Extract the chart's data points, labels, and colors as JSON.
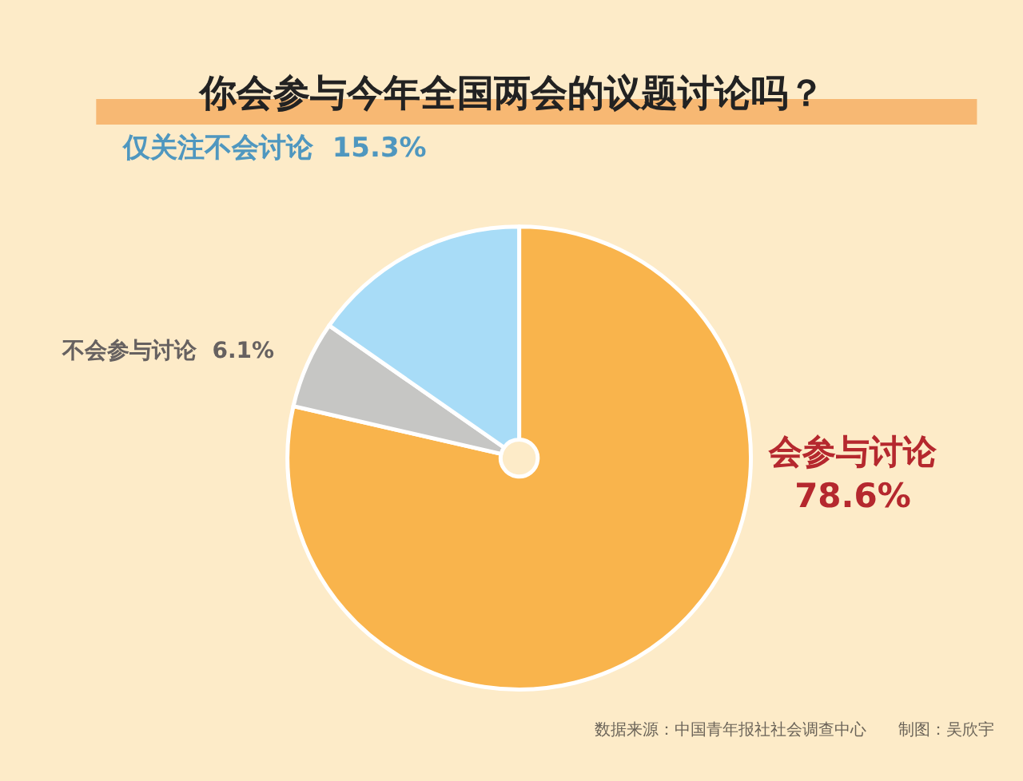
{
  "chart_data": {
    "type": "pie",
    "title": "你会参与今年全国两会的议题讨论吗？",
    "categories": [
      "会参与讨论",
      "不会参与讨论",
      "仅关注不会讨论"
    ],
    "values": [
      78.6,
      6.1,
      15.3
    ],
    "value_labels": [
      "78.6%",
      "6.1%",
      "15.3%"
    ],
    "colors": [
      "#f9b44c",
      "#c6c6c4",
      "#a8dcf7"
    ],
    "annotations": [
      "数据来源：中国青年报社社会调查中心　　制图：吴欣宇"
    ],
    "legend": false
  }
}
